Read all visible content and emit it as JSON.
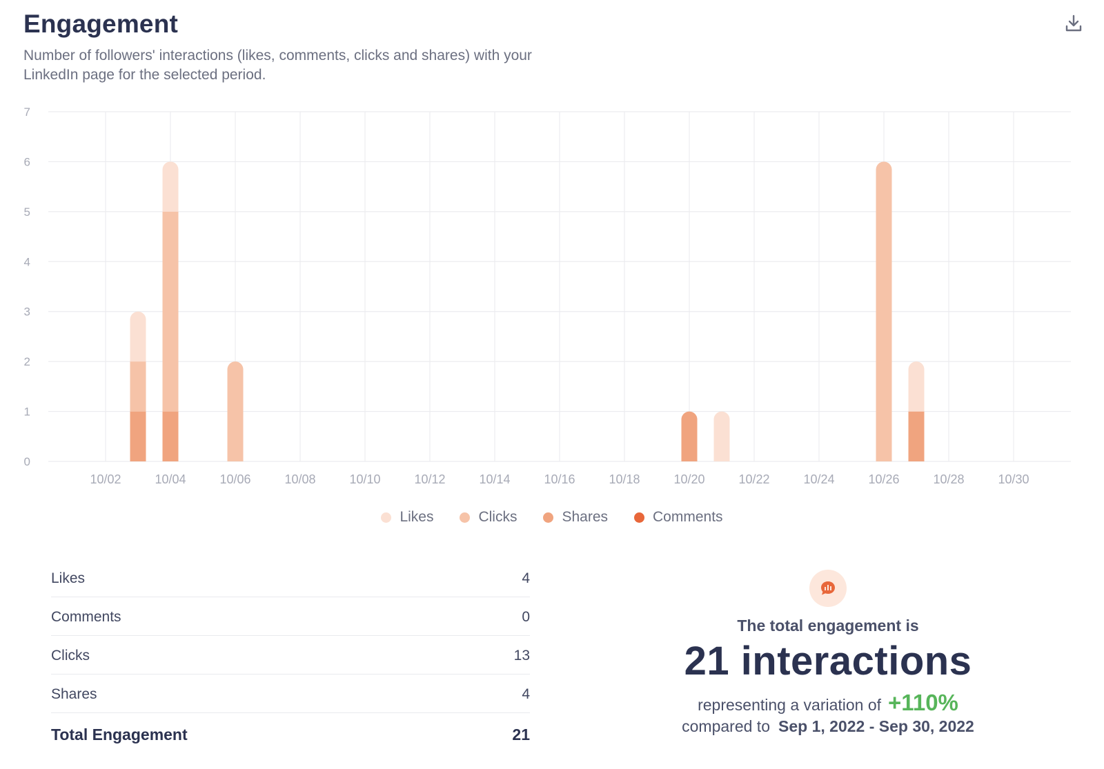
{
  "header": {
    "title": "Engagement",
    "subtitle_line1": "Number of followers' interactions (likes, comments, clicks and shares) with your",
    "subtitle_line2": "LinkedIn page for the selected period."
  },
  "colors": {
    "likes": "#fbe0d3",
    "clicks": "#f6c3a8",
    "shares": "#f0a47f",
    "comments": "#e8673a",
    "positive": "#57b55a"
  },
  "legend": [
    {
      "label": "Likes",
      "color": "#fbe0d3"
    },
    {
      "label": "Clicks",
      "color": "#f6c3a8"
    },
    {
      "label": "Shares",
      "color": "#f0a47f"
    },
    {
      "label": "Comments",
      "color": "#e8673a"
    }
  ],
  "chart_data": {
    "type": "bar",
    "stacked": true,
    "title": "Engagement",
    "xlabel": "",
    "ylabel": "",
    "ylim": [
      0,
      7
    ],
    "yticks": [
      "0",
      "1",
      "2",
      "3",
      "4",
      "5",
      "6",
      "7"
    ],
    "x_tick_labels": [
      "10/02",
      "10/04",
      "10/06",
      "10/08",
      "10/10",
      "10/12",
      "10/14",
      "10/16",
      "10/18",
      "10/20",
      "10/22",
      "10/24",
      "10/26",
      "10/28",
      "10/30"
    ],
    "categories": [
      "10/03",
      "10/04",
      "10/06",
      "10/20",
      "10/21",
      "10/26",
      "10/27"
    ],
    "x_day": [
      3,
      4,
      6,
      20,
      21,
      26,
      27
    ],
    "series": [
      {
        "name": "Shares",
        "values": [
          1,
          1,
          0,
          1,
          0,
          0,
          1
        ]
      },
      {
        "name": "Clicks",
        "values": [
          1,
          4,
          2,
          0,
          0,
          6,
          0
        ]
      },
      {
        "name": "Likes",
        "values": [
          1,
          1,
          0,
          0,
          1,
          0,
          1
        ]
      },
      {
        "name": "Comments",
        "values": [
          0,
          0,
          0,
          0,
          0,
          0,
          0
        ]
      }
    ],
    "legend": [
      "Likes",
      "Clicks",
      "Shares",
      "Comments"
    ],
    "grid": true
  },
  "stats": {
    "rows": [
      {
        "label": "Likes",
        "value": "4"
      },
      {
        "label": "Comments",
        "value": "0"
      },
      {
        "label": "Clicks",
        "value": "13"
      },
      {
        "label": "Shares",
        "value": "4"
      }
    ],
    "total_label": "Total Engagement",
    "total_value": "21"
  },
  "summary": {
    "label": "The total engagement is",
    "big": "21 interactions",
    "variation_prefix": "representing a variation of",
    "variation": "+110%",
    "compared_prefix": "compared to",
    "compared_range": "Sep 1, 2022 - Sep 30, 2022"
  }
}
